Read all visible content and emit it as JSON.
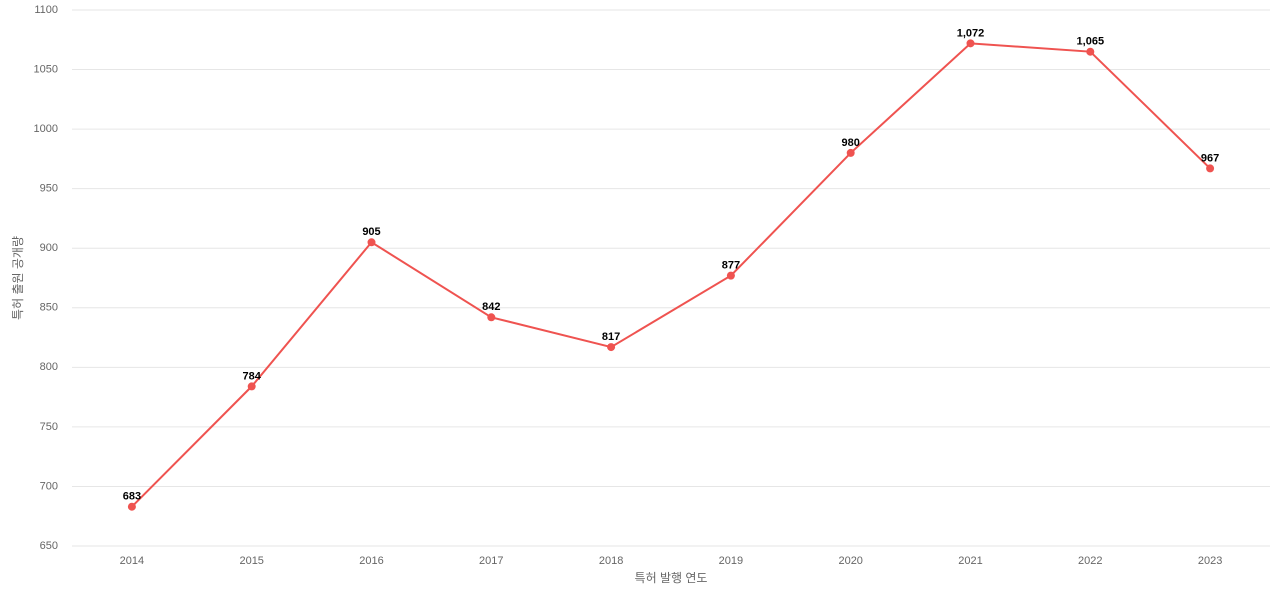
{
  "chart_data": {
    "type": "line",
    "categories": [
      "2014",
      "2015",
      "2016",
      "2017",
      "2018",
      "2019",
      "2020",
      "2021",
      "2022",
      "2023"
    ],
    "series": [
      {
        "name": "특허 출원 공개량",
        "color": "#ef5350",
        "values": [
          683,
          784,
          905,
          842,
          817,
          877,
          980,
          1072,
          1065,
          967
        ],
        "value_labels": [
          "683",
          "784",
          "905",
          "842",
          "817",
          "877",
          "980",
          "1,072",
          "1,065",
          "967"
        ]
      }
    ],
    "x_label": "특허 발행 연도",
    "y_label": "특허 출원 공개량",
    "ylim": [
      650,
      1100
    ],
    "yticks": [
      650,
      700,
      750,
      800,
      850,
      900,
      950,
      1000,
      1050,
      1100
    ],
    "grid": true
  }
}
